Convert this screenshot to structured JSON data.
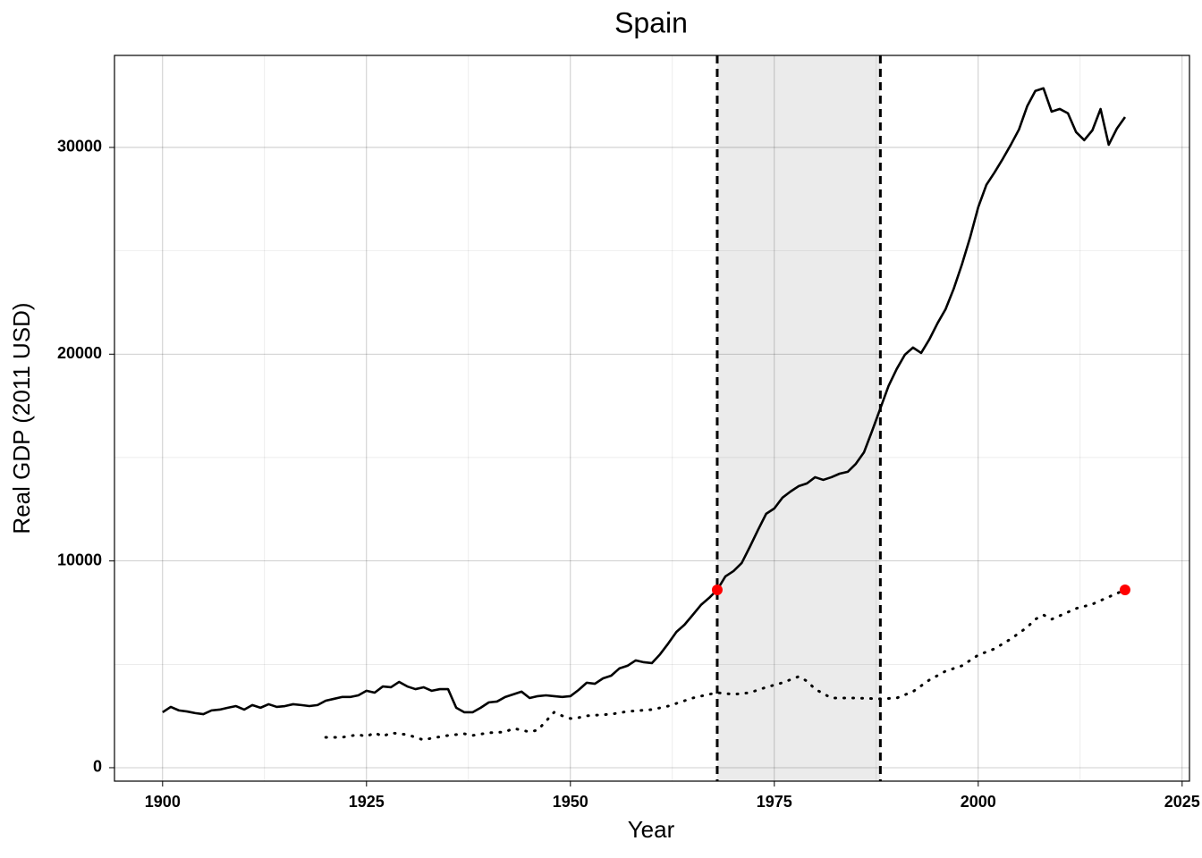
{
  "chart_data": {
    "type": "line",
    "title": "Spain",
    "xlabel": "Year",
    "ylabel": "Real GDP (2011 USD)",
    "xlim": [
      1894.1,
      2025.9
    ],
    "ylim": [
      -650,
      34450
    ],
    "xticks": [
      1900,
      1925,
      1950,
      1975,
      2000,
      2025
    ],
    "yticks": [
      0,
      10000,
      20000,
      30000
    ],
    "grid": true,
    "shaded_region": [
      1968,
      1988
    ],
    "shade_color": "#ebebeb",
    "lines": [
      {
        "style": "solid",
        "color": "#000000",
        "x": [
          1900,
          1901,
          1902,
          1903,
          1904,
          1905,
          1906,
          1907,
          1908,
          1909,
          1910,
          1911,
          1912,
          1913,
          1914,
          1915,
          1916,
          1917,
          1918,
          1919,
          1920,
          1921,
          1922,
          1923,
          1924,
          1925,
          1926,
          1927,
          1928,
          1929,
          1930,
          1931,
          1932,
          1933,
          1934,
          1935,
          1936,
          1937,
          1938,
          1939,
          1940,
          1941,
          1942,
          1943,
          1944,
          1945,
          1946,
          1947,
          1948,
          1949,
          1950,
          1951,
          1952,
          1953,
          1954,
          1955,
          1956,
          1957,
          1958,
          1959,
          1960,
          1961,
          1962,
          1963,
          1964,
          1965,
          1966,
          1967,
          1968,
          1969,
          1970,
          1971,
          1972,
          1973,
          1974,
          1975,
          1976,
          1977,
          1978,
          1979,
          1980,
          1981,
          1982,
          1983,
          1984,
          1985,
          1986,
          1987,
          1988,
          1989,
          1990,
          1991,
          1992,
          1993,
          1994,
          1995,
          1996,
          1997,
          1998,
          1999,
          2000,
          2001,
          2002,
          2003,
          2004,
          2005,
          2006,
          2007,
          2008,
          2009,
          2010,
          2011,
          2012,
          2013,
          2014,
          2015,
          2016,
          2017,
          2018
        ],
        "values": [
          2680,
          2940,
          2770,
          2720,
          2640,
          2590,
          2770,
          2810,
          2900,
          2980,
          2810,
          3030,
          2900,
          3070,
          2940,
          2980,
          3070,
          3030,
          2980,
          3030,
          3240,
          3330,
          3420,
          3420,
          3500,
          3720,
          3630,
          3930,
          3890,
          4150,
          3930,
          3800,
          3890,
          3720,
          3800,
          3800,
          2900,
          2680,
          2680,
          2900,
          3160,
          3200,
          3420,
          3550,
          3680,
          3370,
          3460,
          3500,
          3460,
          3420,
          3460,
          3760,
          4110,
          4060,
          4320,
          4450,
          4800,
          4930,
          5190,
          5100,
          5060,
          5490,
          6010,
          6570,
          6920,
          7390,
          7870,
          8210,
          8600,
          9250,
          9510,
          9900,
          10680,
          11500,
          12280,
          12540,
          13060,
          13360,
          13620,
          13750,
          14050,
          13920,
          14050,
          14220,
          14310,
          14700,
          15260,
          16300,
          17380,
          18460,
          19280,
          19970,
          20320,
          20060,
          20710,
          21490,
          22180,
          23170,
          24340,
          25640,
          27110,
          28190,
          28790,
          29440,
          30130,
          30870,
          31990,
          32730,
          32860,
          31730,
          31860,
          31650,
          30740,
          30350,
          30830,
          31860,
          30130,
          30910,
          31470
        ]
      },
      {
        "style": "dotted",
        "color": "#000000",
        "x": [
          1920,
          1922,
          1924,
          1925,
          1926,
          1927,
          1928,
          1929,
          1930,
          1932,
          1933,
          1935,
          1937,
          1938,
          1940,
          1942,
          1943,
          1944,
          1945,
          1946,
          1947,
          1948,
          1949,
          1950,
          1951,
          1952,
          1955,
          1957,
          1960,
          1962,
          1963,
          1965,
          1967,
          1968,
          1970,
          1972,
          1974,
          1976,
          1978,
          1979,
          1980,
          1982,
          1985,
          1988,
          1990,
          1992,
          1994,
          1996,
          1998,
          2000,
          2002,
          2004,
          2006,
          2007,
          2008,
          2009,
          2010,
          2012,
          2014,
          2016,
          2018
        ],
        "values": [
          1470,
          1470,
          1600,
          1510,
          1690,
          1510,
          1690,
          1640,
          1600,
          1340,
          1430,
          1560,
          1640,
          1560,
          1690,
          1730,
          1900,
          1820,
          1730,
          1820,
          2250,
          2680,
          2510,
          2380,
          2420,
          2510,
          2590,
          2720,
          2810,
          2980,
          3110,
          3370,
          3550,
          3630,
          3550,
          3630,
          3890,
          4110,
          4410,
          4190,
          3800,
          3370,
          3370,
          3330,
          3370,
          3680,
          4240,
          4670,
          4930,
          5450,
          5750,
          6230,
          6790,
          7180,
          7390,
          7180,
          7350,
          7700,
          7910,
          8260,
          8600
        ]
      }
    ],
    "points": {
      "color": "#ff0000",
      "x": [
        1968,
        2018
      ],
      "values": [
        8600,
        8600
      ]
    }
  }
}
